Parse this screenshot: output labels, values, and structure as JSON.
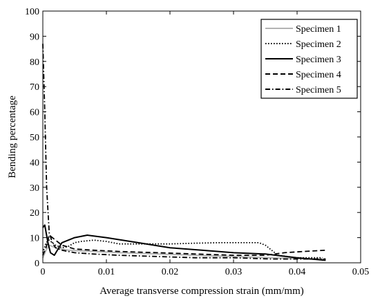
{
  "chart_data": {
    "type": "line",
    "title": "",
    "xlabel": "Average transverse compression strain (mm/mm)",
    "ylabel": "Bending percentage",
    "xlim": [
      0,
      0.05
    ],
    "ylim": [
      0,
      100
    ],
    "x_ticks": [
      0,
      0.01,
      0.02,
      0.03,
      0.04,
      0.05
    ],
    "x_tick_labels": [
      "0",
      "0.01",
      "0.02",
      "0.03",
      "0.04",
      "0.05"
    ],
    "y_ticks": [
      0,
      10,
      20,
      30,
      40,
      50,
      60,
      70,
      80,
      90,
      100
    ],
    "y_tick_labels": [
      "0",
      "10",
      "20",
      "30",
      "40",
      "50",
      "60",
      "70",
      "80",
      "90",
      "100"
    ],
    "grid": false,
    "legend_position": "top-right",
    "series": [
      {
        "name": "Specimen 1",
        "color": "#b3b3b3",
        "dash": "solid",
        "x": [
          0,
          0.0005,
          0.001,
          0.002,
          0.004,
          0.008,
          0.012,
          0.018,
          0.024,
          0.03,
          0.036,
          0.042,
          0.0445
        ],
        "y": [
          2,
          5,
          7,
          6,
          5,
          4.5,
          4,
          3.5,
          3,
          2.5,
          2,
          1.5,
          1.5
        ]
      },
      {
        "name": "Specimen 2",
        "color": "#000000",
        "dash": "dot",
        "x": [
          0,
          0.0005,
          0.001,
          0.002,
          0.003,
          0.004,
          0.005,
          0.006,
          0.008,
          0.01,
          0.012,
          0.016,
          0.02,
          0.024,
          0.028,
          0.032,
          0.034,
          0.035,
          0.036,
          0.037,
          0.04,
          0.044
        ],
        "y": [
          4,
          8,
          9,
          7,
          6,
          6.5,
          8,
          8.5,
          9,
          8.5,
          7.5,
          7.5,
          7.5,
          7.8,
          8,
          8,
          8,
          7,
          5,
          3,
          2,
          2
        ]
      },
      {
        "name": "Specimen 3",
        "color": "#000000",
        "dash": "solid",
        "x": [
          0,
          0.0003,
          0.0008,
          0.0012,
          0.0018,
          0.003,
          0.005,
          0.007,
          0.01,
          0.015,
          0.02,
          0.025,
          0.03,
          0.035,
          0.04,
          0.0445
        ],
        "y": [
          14,
          15,
          8,
          4,
          3,
          8,
          10,
          11,
          10,
          8,
          6,
          5,
          4,
          3.5,
          2,
          1
        ]
      },
      {
        "name": "Specimen 4",
        "color": "#000000",
        "dash": "dash",
        "x": [
          0,
          0.0005,
          0.001,
          0.0015,
          0.003,
          0.005,
          0.008,
          0.012,
          0.018,
          0.024,
          0.03,
          0.035,
          0.038,
          0.041,
          0.0445
        ],
        "y": [
          3,
          6,
          11,
          10,
          7,
          5.5,
          5,
          4.5,
          4,
          3.5,
          3,
          3,
          4,
          4.5,
          5
        ]
      },
      {
        "name": "Specimen 5",
        "color": "#000000",
        "dash": "dashdot",
        "x": [
          0,
          0.0003,
          0.0006,
          0.001,
          0.0015,
          0.002,
          0.003,
          0.005,
          0.008,
          0.012,
          0.018,
          0.024,
          0.03,
          0.036,
          0.042,
          0.0445
        ],
        "y": [
          87,
          60,
          30,
          12,
          8,
          6,
          5,
          4,
          3.5,
          3,
          2.5,
          2,
          2,
          1.5,
          1.5,
          1.5
        ]
      }
    ]
  }
}
